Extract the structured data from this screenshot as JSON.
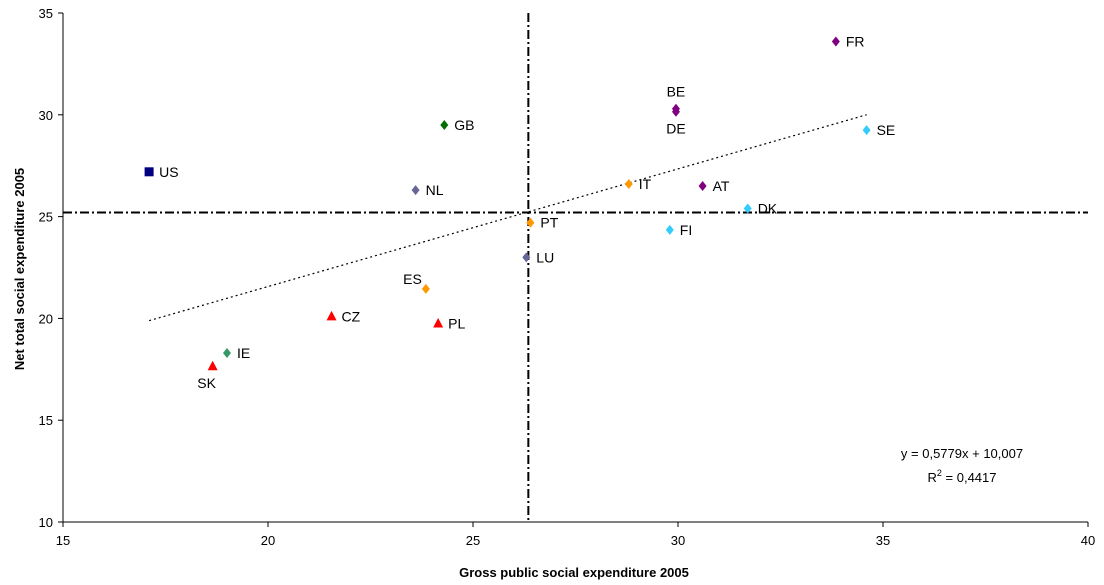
{
  "chart_data": {
    "type": "scatter",
    "xlabel": "Gross public social expenditure 2005",
    "ylabel": "Net total social expenditure 2005",
    "xlim": [
      15,
      40
    ],
    "ylim": [
      10,
      35
    ],
    "xticks": [
      15,
      20,
      25,
      30,
      35,
      40
    ],
    "yticks": [
      10,
      15,
      20,
      25,
      30,
      35
    ],
    "grid": false,
    "reference_lines": {
      "x": 26.35,
      "y": 25.2
    },
    "points": [
      {
        "label": "US",
        "x": 17.1,
        "y": 27.2,
        "color": "#000080",
        "marker": "square",
        "label_pos": "right"
      },
      {
        "label": "GB",
        "x": 24.3,
        "y": 29.5,
        "color": "#007000",
        "marker": "diamond",
        "label_pos": "right"
      },
      {
        "label": "NL",
        "x": 23.6,
        "y": 26.3,
        "color": "#666699",
        "marker": "diamond",
        "label_pos": "right"
      },
      {
        "label": "LU",
        "x": 26.3,
        "y": 23.0,
        "color": "#666699",
        "marker": "diamond",
        "label_pos": "right"
      },
      {
        "label": "IE",
        "x": 19.0,
        "y": 18.3,
        "color": "#339966",
        "marker": "diamond",
        "label_pos": "right"
      },
      {
        "label": "SK",
        "x": 18.65,
        "y": 17.65,
        "color": "#ff0000",
        "marker": "triangle",
        "label_pos": "below-left"
      },
      {
        "label": "CZ",
        "x": 21.55,
        "y": 20.1,
        "color": "#ff0000",
        "marker": "triangle",
        "label_pos": "right"
      },
      {
        "label": "PL",
        "x": 24.15,
        "y": 19.75,
        "color": "#ff0000",
        "marker": "triangle",
        "label_pos": "right"
      },
      {
        "label": "ES",
        "x": 23.85,
        "y": 21.45,
        "color": "#ff9900",
        "marker": "diamond",
        "label_pos": "above-left"
      },
      {
        "label": "PT",
        "x": 26.4,
        "y": 24.7,
        "color": "#ff9900",
        "marker": "diamond",
        "label_pos": "right"
      },
      {
        "label": "IT",
        "x": 28.8,
        "y": 26.6,
        "color": "#ff9900",
        "marker": "diamond",
        "label_pos": "right"
      },
      {
        "label": "BE",
        "x": 29.95,
        "y": 30.3,
        "color": "#800080",
        "marker": "diamond",
        "label_pos": "above"
      },
      {
        "label": "DE",
        "x": 29.95,
        "y": 30.15,
        "color": "#800080",
        "marker": "diamond",
        "label_pos": "below"
      },
      {
        "label": "AT",
        "x": 30.6,
        "y": 26.5,
        "color": "#800080",
        "marker": "diamond",
        "label_pos": "right"
      },
      {
        "label": "FR",
        "x": 33.85,
        "y": 33.6,
        "color": "#800080",
        "marker": "diamond",
        "label_pos": "right"
      },
      {
        "label": "FI",
        "x": 29.8,
        "y": 24.35,
        "color": "#33ccff",
        "marker": "diamond",
        "label_pos": "right"
      },
      {
        "label": "DK",
        "x": 31.7,
        "y": 25.4,
        "color": "#33ccff",
        "marker": "diamond",
        "label_pos": "right"
      },
      {
        "label": "SE",
        "x": 34.6,
        "y": 29.25,
        "color": "#33ccff",
        "marker": "diamond",
        "label_pos": "right"
      }
    ],
    "trendline": {
      "slope": 0.5779,
      "intercept": 10.007,
      "x_range": [
        17.1,
        34.6
      ],
      "equation": "y = 0,5779x + 10,007",
      "r2_prefix": "R",
      "r2_sup": "2",
      "r2_value": " = 0,4417"
    }
  }
}
